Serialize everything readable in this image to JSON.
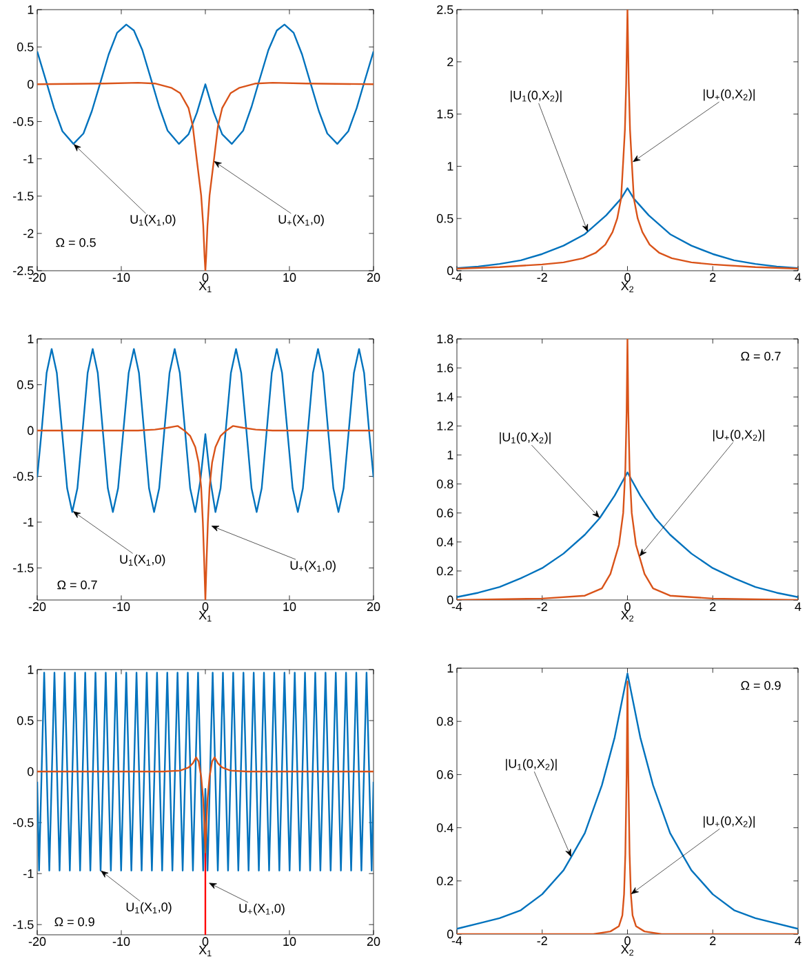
{
  "chart_data": [
    {
      "type": "line",
      "xlabel": "X$_{1}$",
      "xlim": [
        -20,
        20
      ],
      "ylim": [
        -2.5,
        1
      ],
      "xticks": [
        -20,
        -10,
        0,
        10,
        20
      ],
      "yticks": [
        -2.5,
        -2,
        -1.5,
        -1,
        -0.5,
        0,
        0.5,
        1
      ],
      "series": [
        {
          "color": "#0072bd",
          "x": [
            -20,
            -18.83,
            -18,
            -17,
            -15.69,
            -14.5,
            -13.5,
            -12.55,
            -11.5,
            -10.5,
            -9.41,
            -8.5,
            -7.5,
            -6.28,
            -5.5,
            -4.5,
            -3.14,
            -2,
            -1,
            0,
            1,
            2,
            3.14,
            4.5,
            5.5,
            6.28,
            7.5,
            8.5,
            9.41,
            10.5,
            11.5,
            12.55,
            13.5,
            14.5,
            15.69,
            17,
            18,
            18.83,
            20
          ],
          "values": [
            0.44,
            0,
            -0.32,
            -0.63,
            -0.8,
            -0.66,
            -0.36,
            0,
            0.4,
            0.69,
            0.8,
            0.72,
            0.46,
            0,
            -0.3,
            -0.62,
            -0.8,
            -0.67,
            -0.38,
            0,
            -0.38,
            -0.67,
            -0.8,
            -0.62,
            -0.3,
            0,
            0.46,
            0.72,
            0.8,
            0.69,
            0.4,
            0,
            -0.36,
            -0.66,
            -0.8,
            -0.63,
            -0.32,
            0,
            0.44
          ]
        },
        {
          "color": "#d95319",
          "x": [
            -20,
            -12,
            -8,
            -6,
            -4,
            -3,
            -2,
            -1.5,
            -1,
            -0.5,
            -0.25,
            -0.1,
            0,
            0.1,
            0.25,
            0.5,
            1,
            1.5,
            2,
            3,
            4,
            6,
            8,
            12,
            20
          ],
          "values": [
            0,
            0.01,
            0.02,
            0.01,
            -0.05,
            -0.12,
            -0.32,
            -0.56,
            -1.03,
            -1.49,
            -1.9,
            -2.3,
            -2.5,
            -2.3,
            -1.9,
            -1.49,
            -1.03,
            -0.56,
            -0.32,
            -0.12,
            -0.05,
            0.01,
            0.02,
            0.01,
            0
          ]
        }
      ],
      "annotations": [
        {
          "text": "U$_{1}$(X$_{1}$,0)",
          "x": -15.69,
          "y": -0.8
        },
        {
          "text": "U$_{+}$(X$_{1}$,0)",
          "x": 1,
          "y": -1.03
        },
        "Ω = 0.5"
      ]
    },
    {
      "type": "line",
      "xlabel": "X$_{2}$",
      "xlim": [
        -4,
        4
      ],
      "ylim": [
        0,
        2.5
      ],
      "xticks": [
        -4,
        -2,
        0,
        2,
        4
      ],
      "yticks": [
        0,
        0.5,
        1,
        1.5,
        2,
        2.5
      ],
      "series": [
        {
          "color": "#0072bd",
          "x": [
            -4,
            -3.5,
            -3,
            -2.5,
            -2,
            -1.5,
            -1,
            -0.5,
            -0.15,
            0,
            0.15,
            0.5,
            1,
            1.5,
            2,
            2.5,
            3,
            3.5,
            4
          ],
          "values": [
            0.025,
            0.04,
            0.065,
            0.1,
            0.16,
            0.24,
            0.35,
            0.53,
            0.69,
            0.79,
            0.69,
            0.53,
            0.35,
            0.24,
            0.16,
            0.1,
            0.065,
            0.04,
            0.025
          ]
        },
        {
          "color": "#d95319",
          "x": [
            -4,
            -3,
            -2,
            -1.5,
            -1.04,
            -0.75,
            -0.52,
            -0.35,
            -0.24,
            -0.15,
            -0.1,
            -0.06,
            -0.03,
            0,
            0.03,
            0.06,
            0.1,
            0.15,
            0.24,
            0.35,
            0.52,
            0.75,
            1.04,
            1.5,
            2,
            3,
            4
          ],
          "values": [
            0.02,
            0.035,
            0.06,
            0.08,
            0.12,
            0.17,
            0.25,
            0.37,
            0.5,
            0.69,
            1.05,
            1.35,
            1.8,
            2.5,
            1.8,
            1.35,
            1.05,
            0.69,
            0.5,
            0.37,
            0.25,
            0.17,
            0.12,
            0.08,
            0.06,
            0.035,
            0.02
          ]
        }
      ],
      "annotations": [
        {
          "text": "|U$_{1}$(0,X$_{2}$)|",
          "x": -0.93,
          "y": 0.37
        },
        {
          "text": "|U$_{+}$(0,X$_{2}$)|",
          "x": 0.12,
          "y": 1.04
        }
      ]
    },
    {
      "type": "line",
      "xlabel": "X$_{1}$",
      "xlim": [
        -20,
        20
      ],
      "ylim": [
        -1.85,
        1
      ],
      "xticks": [
        -20,
        -10,
        0,
        10,
        20
      ],
      "yticks": [
        -1.5,
        -1,
        -0.5,
        0,
        0.5,
        1
      ],
      "series": [
        {
          "color": "#0072bd",
          "x": [
            -20,
            -19.47,
            -18.88,
            -18.28,
            -17.67,
            -17.06,
            -16.44,
            -15.83,
            -15.22,
            -14.6,
            -14,
            -13.4,
            -12.8,
            -12.2,
            -11.6,
            -11,
            -10.38,
            -9.75,
            -9.12,
            -8.5,
            -7.9,
            -7.3,
            -6.7,
            -6.1,
            -5.49,
            -4.88,
            -4.26,
            -3.65,
            -3.04,
            -2.42,
            -1.81,
            -1.2,
            -0.6,
            0,
            0.6,
            1.2,
            1.81,
            2.42,
            3.04,
            3.65,
            4.26,
            4.88,
            5.49,
            6.1,
            6.7,
            7.3,
            7.9,
            8.5,
            9.12,
            9.75,
            10.38,
            11,
            11.6,
            12.2,
            12.8,
            13.4,
            14,
            14.6,
            15.22,
            15.83,
            16.44,
            17.06,
            17.67,
            18.28,
            18.88,
            19.47,
            20
          ],
          "values": [
            -0.51,
            0,
            0.63,
            0.89,
            0.63,
            0,
            -0.63,
            -0.89,
            -0.63,
            0,
            0.63,
            0.89,
            0.63,
            0,
            -0.63,
            -0.89,
            -0.63,
            0,
            0.63,
            0.89,
            0.63,
            0,
            -0.63,
            -0.89,
            -0.63,
            0,
            0.63,
            0.89,
            0.63,
            0,
            -0.63,
            -0.89,
            -0.55,
            -0.04,
            -0.55,
            -0.89,
            -0.63,
            0,
            0.63,
            0.89,
            0.63,
            0,
            -0.63,
            -0.89,
            -0.63,
            0,
            0.63,
            0.89,
            0.63,
            0,
            -0.63,
            -0.89,
            -0.63,
            0,
            0.63,
            0.89,
            0.63,
            0,
            -0.63,
            -0.89,
            -0.63,
            0,
            0.63,
            0.89,
            0.63,
            0,
            -0.51
          ]
        },
        {
          "color": "#d95319",
          "x": [
            -20,
            -8,
            -6,
            -4.5,
            -3.3,
            -2.5,
            -1.8,
            -1.2,
            -0.8,
            -0.5,
            -0.3,
            -0.15,
            0,
            0.15,
            0.3,
            0.5,
            0.8,
            1.2,
            1.8,
            2.5,
            3.3,
            4.5,
            6,
            8,
            20
          ],
          "values": [
            0,
            0,
            0.01,
            0.03,
            0.05,
            0,
            -0.06,
            -0.18,
            -0.35,
            -0.62,
            -1,
            -1.4,
            -1.85,
            -1.4,
            -1,
            -0.62,
            -0.35,
            -0.18,
            -0.06,
            0,
            0.05,
            0.03,
            0.01,
            0,
            0
          ]
        }
      ],
      "annotations": [
        {
          "text": "U$_{1}$(X$_{1}$,0)",
          "x": -15.77,
          "y": -0.88
        },
        {
          "text": "U$_{+}$(X$_{1}$,0)",
          "x": 0.68,
          "y": -1.04
        },
        "Ω = 0.7"
      ]
    },
    {
      "type": "line",
      "xlabel": "X$_{2}$",
      "xlim": [
        -4,
        4
      ],
      "ylim": [
        0,
        1.8
      ],
      "xticks": [
        -4,
        -2,
        0,
        2,
        4
      ],
      "yticks": [
        0,
        0.2,
        0.4,
        0.6,
        0.8,
        1,
        1.2,
        1.4,
        1.6,
        1.8
      ],
      "series": [
        {
          "color": "#0072bd",
          "x": [
            -4,
            -3.5,
            -3,
            -2.5,
            -2,
            -1.5,
            -1,
            -0.65,
            -0.3,
            0,
            0.3,
            0.65,
            1,
            1.5,
            2,
            2.5,
            3,
            3.5,
            4
          ],
          "values": [
            0.02,
            0.05,
            0.09,
            0.15,
            0.22,
            0.32,
            0.45,
            0.565,
            0.72,
            0.88,
            0.72,
            0.565,
            0.45,
            0.32,
            0.22,
            0.15,
            0.09,
            0.05,
            0.02
          ]
        },
        {
          "color": "#d95319",
          "x": [
            -4,
            -2,
            -1,
            -0.6,
            -0.4,
            -0.28,
            -0.2,
            -0.1,
            -0.05,
            -0.02,
            0,
            0.02,
            0.05,
            0.1,
            0.2,
            0.28,
            0.4,
            0.6,
            1,
            2,
            4
          ],
          "values": [
            0,
            0.01,
            0.03,
            0.08,
            0.18,
            0.3,
            0.38,
            0.6,
            0.9,
            1.3,
            1.8,
            1.3,
            0.9,
            0.6,
            0.38,
            0.3,
            0.18,
            0.08,
            0.03,
            0.01,
            0
          ]
        }
      ],
      "annotations": [
        {
          "text": "|U$_{1}$(0,X$_{2}$)|",
          "x": -0.65,
          "y": 0.565
        },
        {
          "text": "|U$_{+}$(0,X$_{2}$)|",
          "x": 0.28,
          "y": 0.3
        },
        "Ω = 0.7"
      ]
    },
    {
      "type": "line",
      "xlabel": "X$_{1}$",
      "xlim": [
        -20,
        20
      ],
      "ylim": [
        -1.6,
        1
      ],
      "xticks": [
        -20,
        -10,
        0,
        10,
        20
      ],
      "yticks": [
        -1.5,
        -1,
        -0.5,
        0,
        0.5,
        1
      ],
      "series": [
        {
          "color": "#0072bd",
          "x": [
            -20,
            -19.78,
            -19.17,
            -18.56,
            -17.95,
            -17.34,
            -16.73,
            -16.12,
            -15.51,
            -14.9,
            -14.29,
            -13.68,
            -13.07,
            -12.46,
            -11.85,
            -11.24,
            -10.63,
            -10.02,
            -9.41,
            -8.8,
            -8.19,
            -7.58,
            -6.97,
            -6.36,
            -5.75,
            -5.14,
            -4.53,
            -3.92,
            -3.31,
            -2.7,
            -2.09,
            -1.48,
            -0.87,
            -0.26,
            0,
            0.26,
            0.87,
            1.48,
            2.09,
            2.7,
            3.31,
            3.92,
            4.53,
            5.14,
            5.75,
            6.36,
            6.97,
            7.58,
            8.19,
            8.8,
            9.41,
            10.02,
            10.63,
            11.24,
            11.85,
            12.46,
            13.07,
            13.68,
            14.29,
            14.9,
            15.51,
            16.12,
            16.73,
            17.34,
            17.95,
            18.56,
            19.17,
            19.78,
            20
          ],
          "values": [
            -0.1,
            -0.97,
            0.97,
            -0.97,
            0.97,
            -0.97,
            0.97,
            -0.97,
            0.97,
            -0.97,
            0.97,
            -0.97,
            0.97,
            -0.97,
            0.97,
            -0.97,
            0.97,
            -0.97,
            0.97,
            -0.97,
            0.97,
            -0.97,
            0.97,
            -0.97,
            0.97,
            -0.97,
            0.97,
            -0.97,
            0.97,
            -0.97,
            0.97,
            -0.97,
            0.97,
            -0.97,
            -0.17,
            -0.97,
            0.97,
            -0.97,
            0.97,
            -0.97,
            0.97,
            -0.97,
            0.97,
            -0.97,
            0.97,
            -0.97,
            0.97,
            -0.97,
            0.97,
            -0.97,
            0.97,
            -0.97,
            0.97,
            -0.97,
            0.97,
            -0.97,
            0.97,
            -0.97,
            0.97,
            -0.97,
            0.97,
            -0.97,
            0.97,
            -0.97,
            0.97,
            -0.97,
            0.97,
            -0.97,
            -0.1
          ]
        },
        {
          "color": "#d95319",
          "x": [
            -20,
            -5,
            -3,
            -2,
            -1.5,
            -1.1,
            -0.8,
            -0.5,
            -0.27,
            -0.1,
            0,
            0.1,
            0.27,
            0.5,
            0.8,
            1.1,
            1.5,
            2,
            3,
            5,
            20
          ],
          "values": [
            0,
            0,
            0.01,
            0.04,
            0.08,
            0.14,
            0.1,
            -0.05,
            -0.26,
            -0.55,
            -0.8,
            -0.55,
            -0.26,
            -0.05,
            0.1,
            0.14,
            0.08,
            0.04,
            0.01,
            0,
            0
          ]
        },
        {
          "color": "#ff0000",
          "x": [
            0,
            0
          ],
          "values": [
            -0.8,
            -1.6
          ]
        }
      ],
      "annotations": [
        {
          "text": "U$_{1}$(X$_{1}$,0)",
          "x": -12.46,
          "y": -0.97
        },
        {
          "text": "U$_{+}$(X$_{1}$,0)",
          "x": 0.4,
          "y": -1.09
        },
        "Ω = 0.9"
      ]
    },
    {
      "type": "line",
      "xlabel": "X$_{2}$",
      "xlim": [
        -4,
        4
      ],
      "ylim": [
        0,
        1
      ],
      "xticks": [
        -4,
        -2,
        0,
        2,
        4
      ],
      "yticks": [
        0,
        0.2,
        0.4,
        0.6,
        0.8,
        1
      ],
      "series": [
        {
          "color": "#0072bd",
          "x": [
            -4,
            -3.5,
            -3,
            -2.5,
            -2,
            -1.5,
            -1.32,
            -1,
            -0.6,
            -0.3,
            0,
            0.3,
            0.6,
            1,
            1.32,
            1.5,
            2,
            2.5,
            3,
            3.5,
            4
          ],
          "values": [
            0.02,
            0.04,
            0.06,
            0.09,
            0.15,
            0.24,
            0.29,
            0.38,
            0.56,
            0.74,
            0.98,
            0.74,
            0.56,
            0.38,
            0.29,
            0.24,
            0.15,
            0.09,
            0.06,
            0.04,
            0.02
          ]
        },
        {
          "color": "#d95319",
          "x": [
            -4,
            -0.8,
            -0.4,
            -0.2,
            -0.12,
            -0.08,
            -0.05,
            -0.02,
            0,
            0.02,
            0.05,
            0.08,
            0.12,
            0.2,
            0.4,
            0.8,
            4
          ],
          "values": [
            0,
            0,
            0.01,
            0.03,
            0.07,
            0.15,
            0.3,
            0.6,
            0.95,
            0.6,
            0.3,
            0.15,
            0.07,
            0.03,
            0.01,
            0,
            0
          ]
        }
      ],
      "annotations": [
        {
          "text": "|U$_{1}$(0,X$_{2}$)|",
          "x": -1.32,
          "y": 0.29
        },
        {
          "text": "|U$_{+}$(0,X$_{2}$)|",
          "x": 0.08,
          "y": 0.15
        },
        "Ω = 0.9"
      ]
    }
  ]
}
